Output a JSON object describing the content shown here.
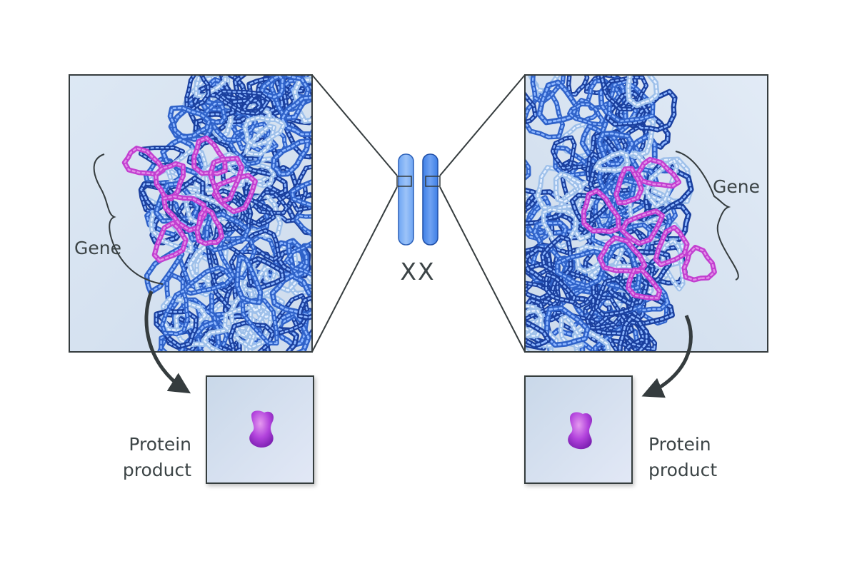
{
  "labels": {
    "gene_left": "Gene",
    "gene_right": "Gene",
    "chromosome_pair": "XX",
    "protein_left_line1": "Protein",
    "protein_left_line2": "product",
    "protein_right_line1": "Protein",
    "protein_right_line2": "product"
  },
  "colors": {
    "dna_dark": "#1a3f9e",
    "dna_mid": "#2f62c9",
    "dna_light": "#9ec0ea",
    "gene_magenta": "#c23fd0",
    "gene_magenta_light": "#e38ee9",
    "panel_bg": "#dbe6f3",
    "panel_border": "#353c3e",
    "chromosome_light": "#84b3f5",
    "chromosome_dark": "#4d8cf0",
    "arrow": "#353c3e",
    "protein": "#a63ad6"
  }
}
